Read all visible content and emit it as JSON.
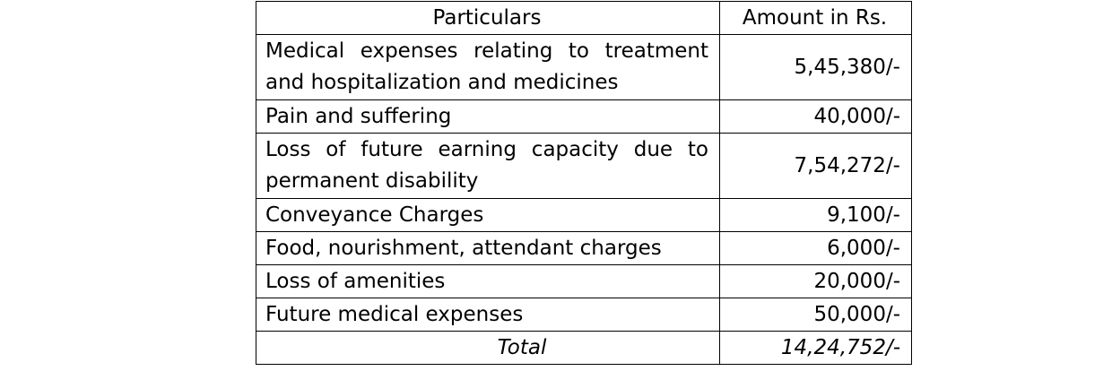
{
  "table": {
    "headers": {
      "particulars": "Particulars",
      "amount": "Amount in Rs."
    },
    "rows": [
      {
        "particulars": "Medical expenses relating to treatment and hospitalization and medicines",
        "amount": "5,45,380/-"
      },
      {
        "particulars": "Pain and suffering",
        "amount": "40,000/-"
      },
      {
        "particulars": "Loss of future earning capacity due to permanent disability",
        "amount": "7,54,272/-"
      },
      {
        "particulars": "Conveyance Charges",
        "amount": "9,100/-"
      },
      {
        "particulars": "Food, nourishment, attendant charges",
        "amount": "6,000/-"
      },
      {
        "particulars": "Loss of amenities",
        "amount": "20,000/-"
      },
      {
        "particulars": "Future medical expenses",
        "amount": "50,000/-"
      }
    ],
    "total": {
      "label": "Total",
      "amount": "14,24,752/-"
    }
  }
}
